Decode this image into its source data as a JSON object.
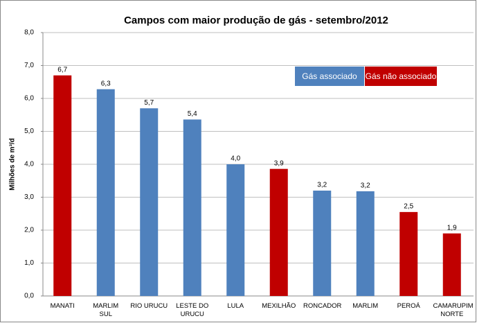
{
  "chart_data": {
    "type": "bar",
    "title": "Campos com maior produção de gás - setembro/2012",
    "y_label": "Milhões de m³/d",
    "categories": [
      "MANATI",
      "MARLIM SUL",
      "RIO URUCU",
      "LESTE DO URUCU",
      "LULA",
      "MEXILHÃO",
      "RONCADOR",
      "MARLIM",
      "PEROÁ",
      "CAMARUPIM NORTE"
    ],
    "series": [
      {
        "name": "Gás associado",
        "color": "#4f81bd",
        "values": [
          null,
          6.28,
          5.7,
          5.36,
          4.0,
          null,
          3.2,
          3.18,
          null,
          null
        ],
        "value_labels": [
          null,
          "6,3",
          "5,7",
          "5,4",
          "4,0",
          null,
          "3,2",
          "3,2",
          null,
          null
        ]
      },
      {
        "name": "Gás não associado",
        "color": "#c00000",
        "values": [
          6.7,
          null,
          null,
          null,
          null,
          3.86,
          null,
          null,
          2.55,
          1.9
        ],
        "value_labels": [
          "6,7",
          null,
          null,
          null,
          null,
          "3,9",
          null,
          null,
          "2,5",
          "1,9"
        ]
      }
    ],
    "ylim": [
      0,
      8
    ],
    "yticks": [
      {
        "value": 0,
        "label": "0,0"
      },
      {
        "value": 1,
        "label": "1,0"
      },
      {
        "value": 2,
        "label": "2,0"
      },
      {
        "value": 3,
        "label": "3,0"
      },
      {
        "value": 4,
        "label": "4,0"
      },
      {
        "value": 5,
        "label": "5,0"
      },
      {
        "value": 6,
        "label": "6,0"
      },
      {
        "value": 7,
        "label": "7,0"
      },
      {
        "value": 8,
        "label": "8,0"
      }
    ],
    "grid": true
  }
}
